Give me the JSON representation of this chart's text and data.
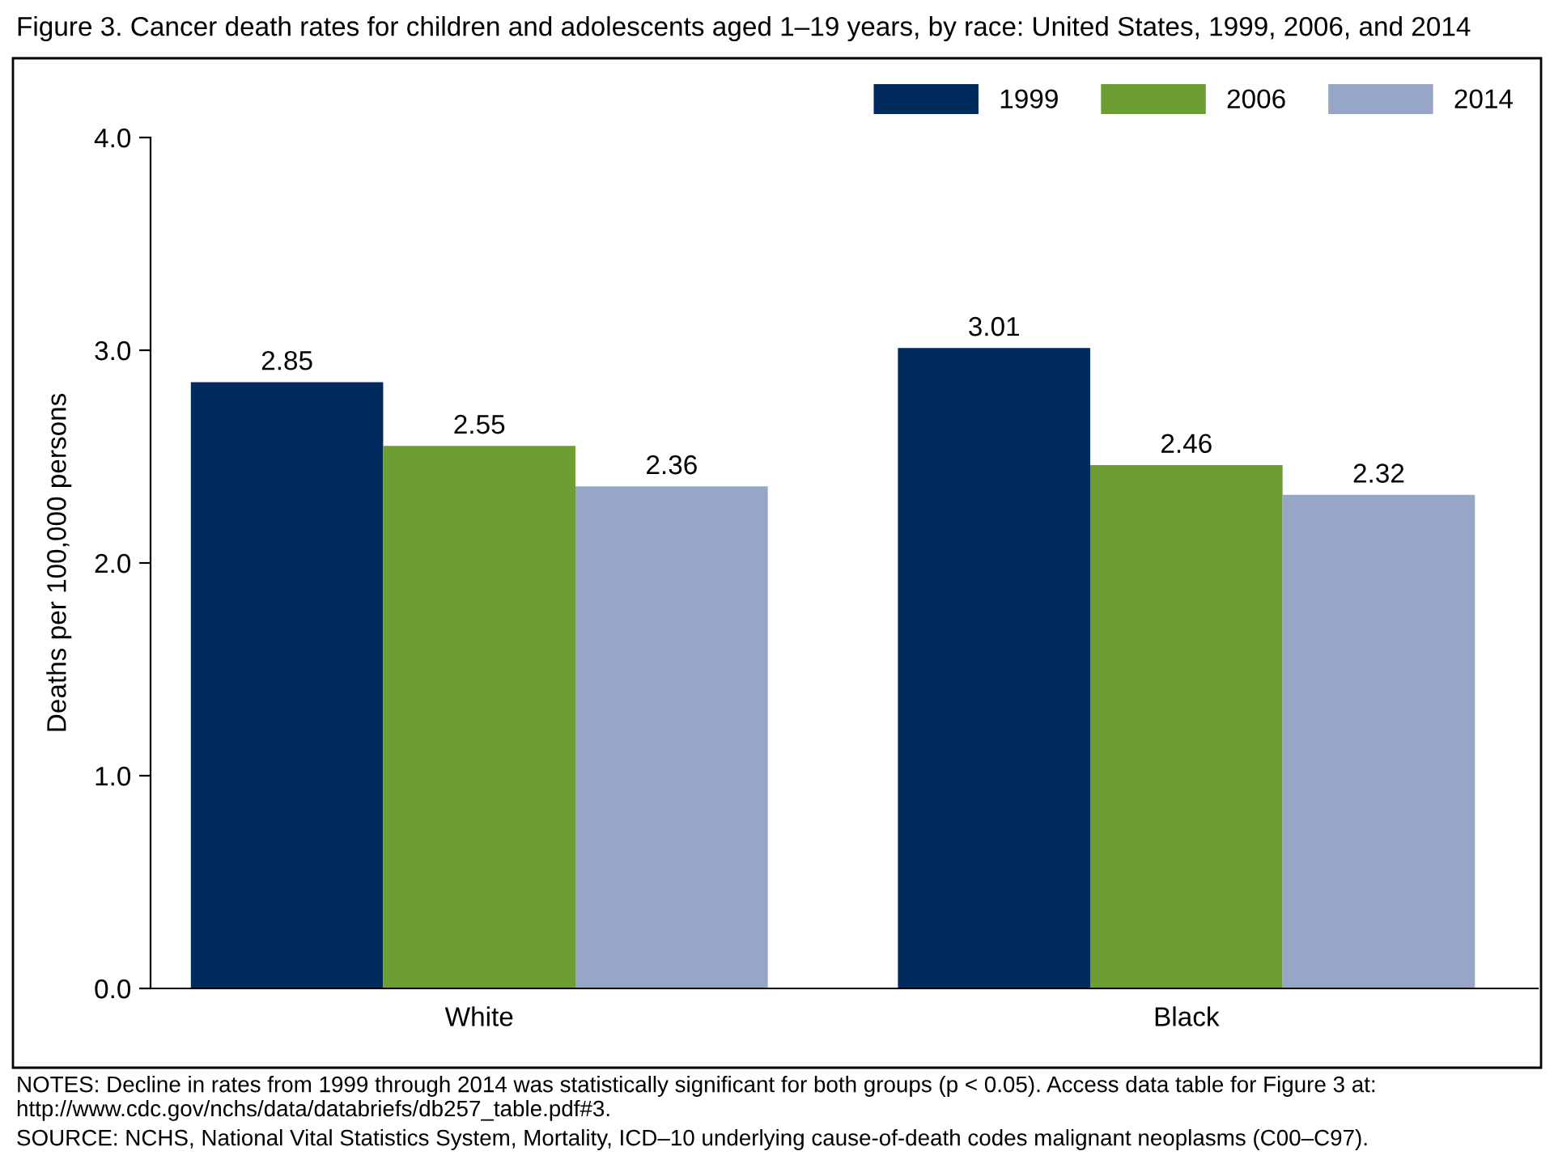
{
  "chart_data": {
    "type": "bar",
    "title": "Figure 3. Cancer death rates for children and adolescents aged 1–19 years, by race: United States, 1999, 2006, and 2014",
    "ylabel": "Deaths per 100,000 persons",
    "categories": [
      "White",
      "Black"
    ],
    "series": [
      {
        "name": "1999",
        "color": "#002b5c",
        "values": [
          2.85,
          3.01
        ]
      },
      {
        "name": "2006",
        "color": "#6c9e33",
        "values": [
          2.55,
          2.46
        ]
      },
      {
        "name": "2014",
        "color": "#97a5c6",
        "values": [
          2.36,
          2.32
        ]
      }
    ],
    "ylim": [
      0,
      4
    ],
    "yticks": [
      {
        "value": 0,
        "label": "0.0"
      },
      {
        "value": 1,
        "label": "1.0"
      },
      {
        "value": 2,
        "label": "2.0"
      },
      {
        "value": 3,
        "label": "3.0"
      },
      {
        "value": 4,
        "label": "4.0"
      }
    ],
    "data_labels": true,
    "grid": false,
    "legend": "top right",
    "annotations": [
      "NOTES: Decline in rates from 1999 through 2014 was statistically significant for both groups (p < 0.05). Access data table for Figure 3 at: http://www.cdc.gov/nchs/data/databriefs/db257_table.pdf#3.",
      "SOURCE: NCHS, National Vital Statistics System, Mortality, ICD–10 underlying cause-of-death codes malignant neoplasms (C00–C97)."
    ]
  }
}
